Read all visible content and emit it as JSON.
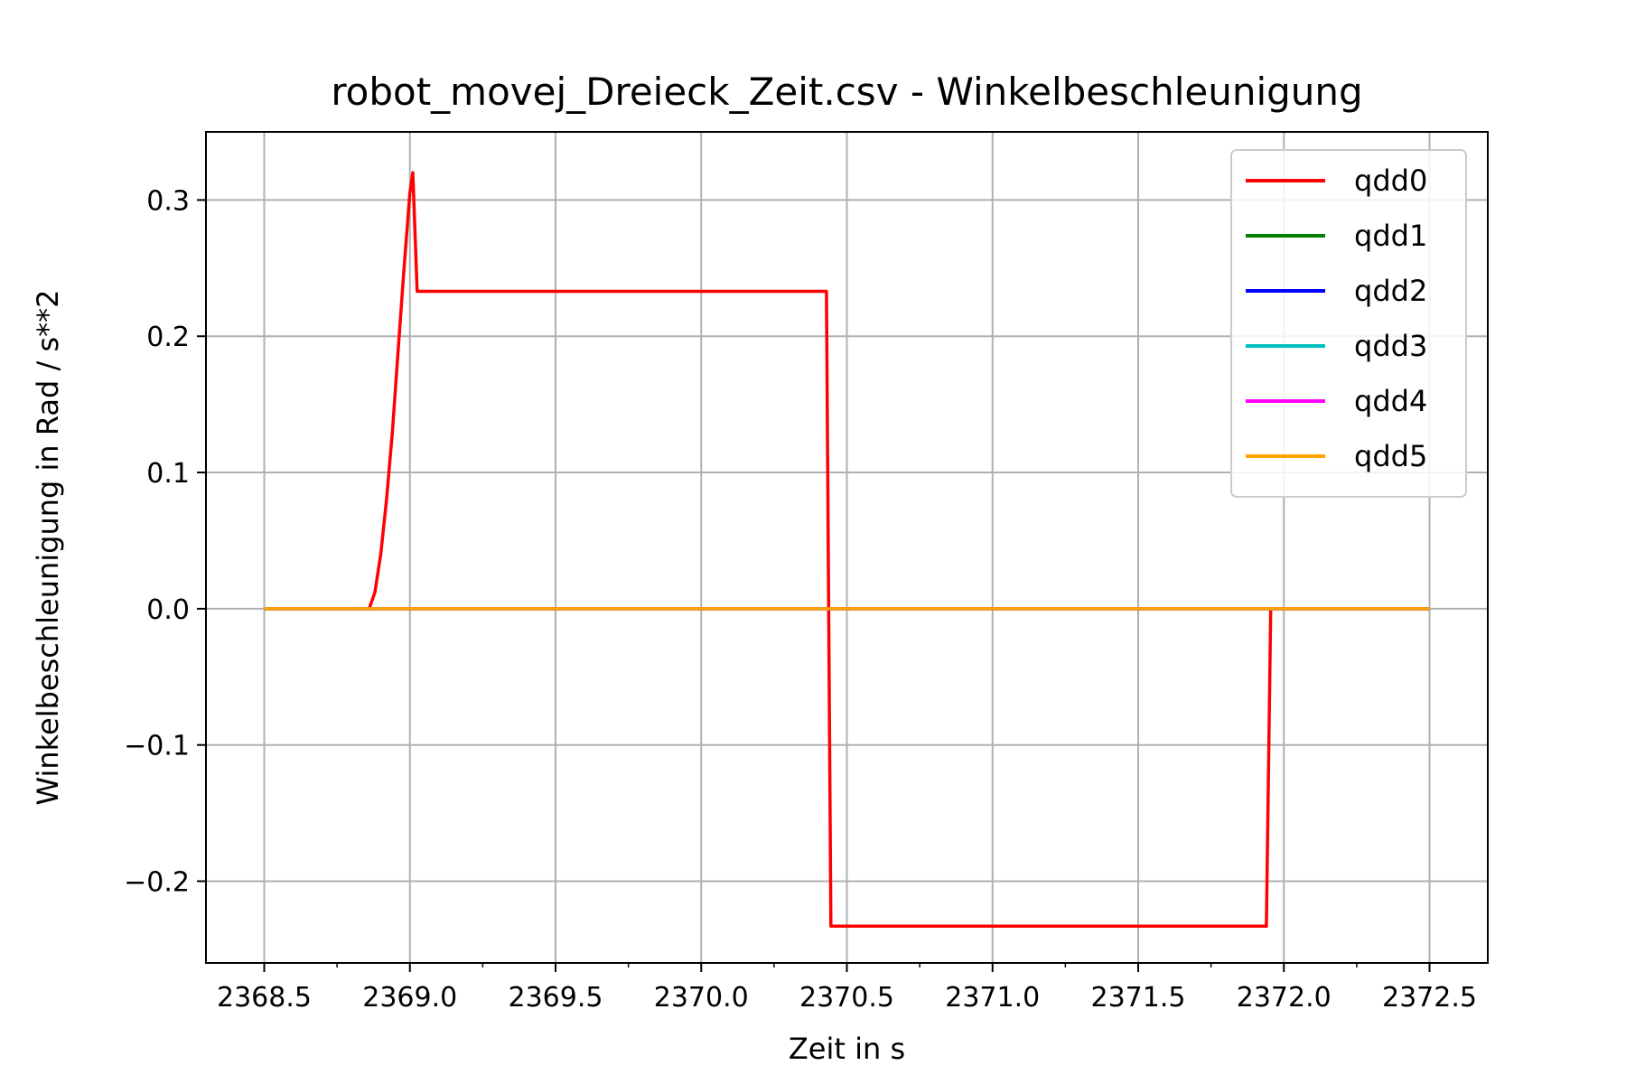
{
  "chart_data": {
    "type": "line",
    "title": "robot_movej_Dreieck_Zeit.csv - Winkelbeschleunigung",
    "xlabel": "Zeit in s",
    "ylabel": "Winkelbeschleunigung in Rad / s**2",
    "xlim": [
      2368.3,
      2372.7
    ],
    "ylim": [
      -0.26,
      0.35
    ],
    "x_ticks": [
      2368.5,
      2369.0,
      2369.5,
      2370.0,
      2370.5,
      2371.0,
      2371.5,
      2372.0,
      2372.5
    ],
    "x_tick_labels": [
      "2368.5",
      "2369.0",
      "2369.5",
      "2370.0",
      "2370.5",
      "2371.0",
      "2371.5",
      "2372.0",
      "2372.5"
    ],
    "y_ticks": [
      -0.2,
      -0.1,
      0.0,
      0.1,
      0.2,
      0.3
    ],
    "y_tick_labels": [
      "−0.2",
      "−0.1",
      "0.0",
      "0.1",
      "0.2",
      "0.3"
    ],
    "grid": true,
    "legend_position": "top-right",
    "series": [
      {
        "name": "qdd0",
        "color": "#ff0000",
        "x": [
          2368.5,
          2368.86,
          2368.88,
          2368.9,
          2368.92,
          2368.94,
          2368.96,
          2368.98,
          2369.0,
          2369.01,
          2369.025,
          2370.43,
          2370.445,
          2371.94,
          2371.955,
          2372.5
        ],
        "y": [
          0.0,
          0.0,
          0.012,
          0.04,
          0.08,
          0.13,
          0.19,
          0.25,
          0.305,
          0.32,
          0.233,
          0.233,
          -0.233,
          -0.233,
          0.0,
          0.0
        ]
      },
      {
        "name": "qdd1",
        "color": "#008000",
        "x": [
          2368.5,
          2372.5
        ],
        "y": [
          0.0,
          0.0
        ]
      },
      {
        "name": "qdd2",
        "color": "#0000ff",
        "x": [
          2368.5,
          2372.5
        ],
        "y": [
          0.0,
          0.0
        ]
      },
      {
        "name": "qdd3",
        "color": "#00bfbf",
        "x": [
          2368.5,
          2372.5
        ],
        "y": [
          0.0,
          0.0
        ]
      },
      {
        "name": "qdd4",
        "color": "#ff00ff",
        "x": [
          2368.5,
          2372.5
        ],
        "y": [
          0.0,
          0.0
        ]
      },
      {
        "name": "qdd5",
        "color": "#ffa500",
        "x": [
          2368.5,
          2372.5
        ],
        "y": [
          0.0,
          0.0
        ]
      }
    ]
  }
}
